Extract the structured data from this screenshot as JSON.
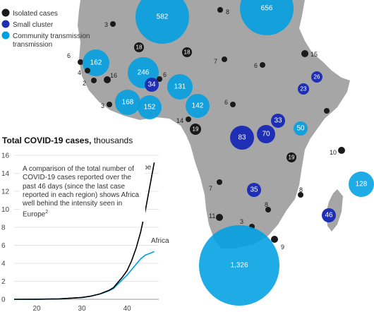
{
  "legend": [
    {
      "label": "Isolated cases",
      "color": "#1a1a1a"
    },
    {
      "label": "Small cluster",
      "color": "#1f2fb5"
    },
    {
      "label": "Community transmission",
      "color": "#009fe3"
    }
  ],
  "map": {
    "land_color": "#a6a6a6",
    "markers": [
      {
        "value": "582",
        "type": "community"
      },
      {
        "value": "656",
        "type": "community"
      },
      {
        "value": "8",
        "type": "isolated"
      },
      {
        "value": "3",
        "type": "isolated"
      },
      {
        "value": "18",
        "type": "isolated"
      },
      {
        "value": "18",
        "type": "isolated"
      },
      {
        "value": "15",
        "type": "isolated"
      },
      {
        "value": "6",
        "type": "isolated"
      },
      {
        "value": "162",
        "type": "community"
      },
      {
        "value": "4",
        "type": "isolated"
      },
      {
        "value": "246",
        "type": "community"
      },
      {
        "value": "6",
        "type": "isolated"
      },
      {
        "value": "7",
        "type": "isolated"
      },
      {
        "value": "6",
        "type": "isolated"
      },
      {
        "value": "26",
        "type": "cluster"
      },
      {
        "value": "2",
        "type": "isolated"
      },
      {
        "value": "16",
        "type": "isolated"
      },
      {
        "value": "34",
        "type": "cluster"
      },
      {
        "value": "131",
        "type": "community"
      },
      {
        "value": "23",
        "type": "cluster"
      },
      {
        "value": "6",
        "type": "isolated"
      },
      {
        "value": "3",
        "type": "isolated"
      },
      {
        "value": "168",
        "type": "community"
      },
      {
        "value": "152",
        "type": "community"
      },
      {
        "value": "142",
        "type": "community"
      },
      {
        "value": "3",
        "type": "isolated"
      },
      {
        "value": "14",
        "type": "isolated"
      },
      {
        "value": "19",
        "type": "isolated"
      },
      {
        "value": "33",
        "type": "cluster"
      },
      {
        "value": "83",
        "type": "cluster"
      },
      {
        "value": "70",
        "type": "cluster"
      },
      {
        "value": "50",
        "type": "community"
      },
      {
        "value": "10",
        "type": "isolated"
      },
      {
        "value": "19",
        "type": "isolated"
      },
      {
        "value": "128",
        "type": "community"
      },
      {
        "value": "7",
        "type": "isolated"
      },
      {
        "value": "35",
        "type": "cluster"
      },
      {
        "value": "8",
        "type": "isolated"
      },
      {
        "value": "8",
        "type": "isolated"
      },
      {
        "value": "11",
        "type": "isolated"
      },
      {
        "value": "3",
        "type": "isolated"
      },
      {
        "value": "46",
        "type": "cluster"
      },
      {
        "value": "9",
        "type": "isolated"
      },
      {
        "value": "1,326",
        "type": "community"
      }
    ]
  },
  "chart_data": {
    "type": "line",
    "title": "Total COVID-19 cases,",
    "title_unit": "thousands",
    "ylim": [
      0,
      16
    ],
    "xlim": [
      15,
      47
    ],
    "yticks": [
      0,
      2,
      4,
      6,
      8,
      10,
      12,
      14,
      16
    ],
    "xticks": [
      20,
      30,
      40
    ],
    "grid": true,
    "series": [
      {
        "name": "Europe",
        "color": "#000000",
        "x": [
          15,
          20,
          25,
          30,
          32,
          34,
          35,
          36,
          37,
          38,
          39,
          40,
          41,
          42,
          43,
          44,
          45,
          46
        ],
        "y": [
          0,
          0.01,
          0.05,
          0.2,
          0.35,
          0.6,
          0.8,
          1.0,
          1.3,
          1.9,
          2.5,
          3.2,
          4.3,
          5.7,
          7.5,
          9.8,
          12.5,
          15.2
        ]
      },
      {
        "name": "Africa",
        "color": "#009fe3",
        "x": [
          15,
          20,
          25,
          30,
          32,
          34,
          35,
          36,
          37,
          38,
          39,
          40,
          41,
          42,
          43,
          44,
          45,
          46
        ],
        "y": [
          0,
          0.01,
          0.05,
          0.2,
          0.35,
          0.6,
          0.75,
          0.95,
          1.2,
          1.7,
          2.2,
          2.7,
          3.3,
          3.9,
          4.5,
          4.9,
          5.1,
          5.3
        ]
      }
    ],
    "annotation": "A comparison of the total number of COVID-19 cases reported over the past 46 days (since the last case reported in each region) shows Africa well behind the intensity seen in Europe",
    "annotation_footnote": "2"
  }
}
